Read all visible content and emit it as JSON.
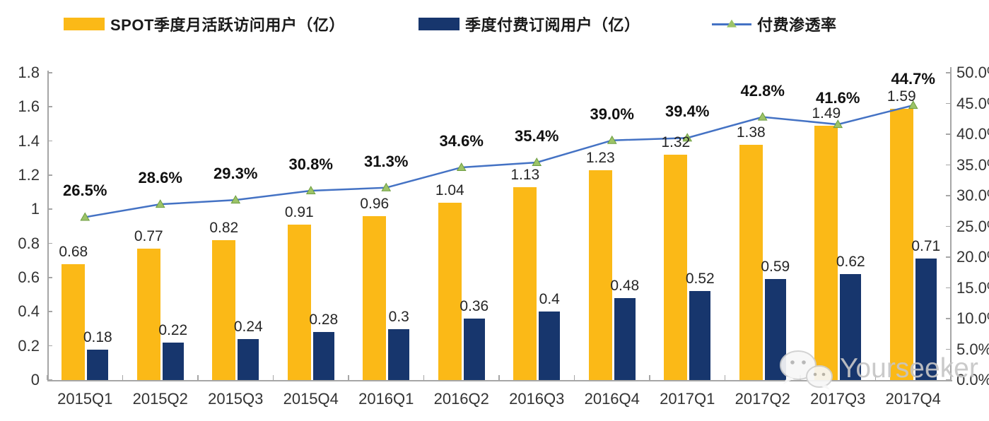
{
  "legend": {
    "items": [
      {
        "label": "SPOT季度月活跃访问用户（亿）",
        "swatch": "bar",
        "color": "#FBB917"
      },
      {
        "label": "季度付费订阅用户（亿）",
        "swatch": "bar",
        "color": "#17366D"
      },
      {
        "label": "付费渗透率",
        "swatch": "line-triangle",
        "color": "#4472C4",
        "marker_color": "#9CC368"
      }
    ]
  },
  "chart_data": {
    "type": "combo-bar-line",
    "categories": [
      "2015Q1",
      "2015Q2",
      "2015Q3",
      "2015Q4",
      "2016Q1",
      "2016Q2",
      "2016Q3",
      "2016Q4",
      "2017Q1",
      "2017Q2",
      "2017Q3",
      "2017Q4"
    ],
    "series": [
      {
        "name": "SPOT季度月活跃访问用户（亿）",
        "type": "bar",
        "axis": "left",
        "color": "#FBB917",
        "values": [
          0.68,
          0.77,
          0.82,
          0.91,
          0.96,
          1.04,
          1.13,
          1.23,
          1.32,
          1.38,
          1.49,
          1.59
        ],
        "labels": [
          "0.68",
          "0.77",
          "0.82",
          "0.91",
          "0.96",
          "1.04",
          "1.13",
          "1.23",
          "1.32",
          "1.38",
          "1.49",
          "1.59"
        ]
      },
      {
        "name": "季度付费订阅用户（亿）",
        "type": "bar",
        "axis": "left",
        "color": "#17366D",
        "values": [
          0.18,
          0.22,
          0.24,
          0.28,
          0.3,
          0.36,
          0.4,
          0.48,
          0.52,
          0.59,
          0.62,
          0.71
        ],
        "labels": [
          "0.18",
          "0.22",
          "0.24",
          "0.28",
          "0.3",
          "0.36",
          "0.4",
          "0.48",
          "0.52",
          "0.59",
          "0.62",
          "0.71"
        ]
      },
      {
        "name": "付费渗透率",
        "type": "line",
        "axis": "right",
        "color": "#4472C4",
        "marker": "triangle",
        "marker_color": "#9CC368",
        "marker_edge_color": "#6E9E41",
        "values": [
          26.5,
          28.6,
          29.3,
          30.8,
          31.3,
          34.6,
          35.4,
          39.0,
          39.4,
          42.8,
          41.6,
          44.7
        ],
        "labels": [
          "26.5%",
          "28.6%",
          "29.3%",
          "30.8%",
          "31.3%",
          "34.6%",
          "35.4%",
          "39.0%",
          "39.4%",
          "42.8%",
          "41.6%",
          "44.7%"
        ]
      }
    ],
    "left_axis": {
      "min": 0,
      "max": 1.8,
      "step": 0.2,
      "tick_labels": [
        "0",
        "0.2",
        "0.4",
        "0.6",
        "0.8",
        "1",
        "1.2",
        "1.4",
        "1.6",
        "1.8"
      ]
    },
    "right_axis": {
      "min": 0,
      "max": 50,
      "step": 5,
      "tick_labels": [
        "0.0%",
        "5.0%",
        "10.0%",
        "15.0%",
        "20.0%",
        "25.0%",
        "30.0%",
        "35.0%",
        "40.0%",
        "45.0%",
        "50.0%"
      ]
    },
    "grid": false,
    "legend_position": "top",
    "title": ""
  },
  "watermark": {
    "text": "Yourseeker",
    "icon": "wechat-icon"
  }
}
